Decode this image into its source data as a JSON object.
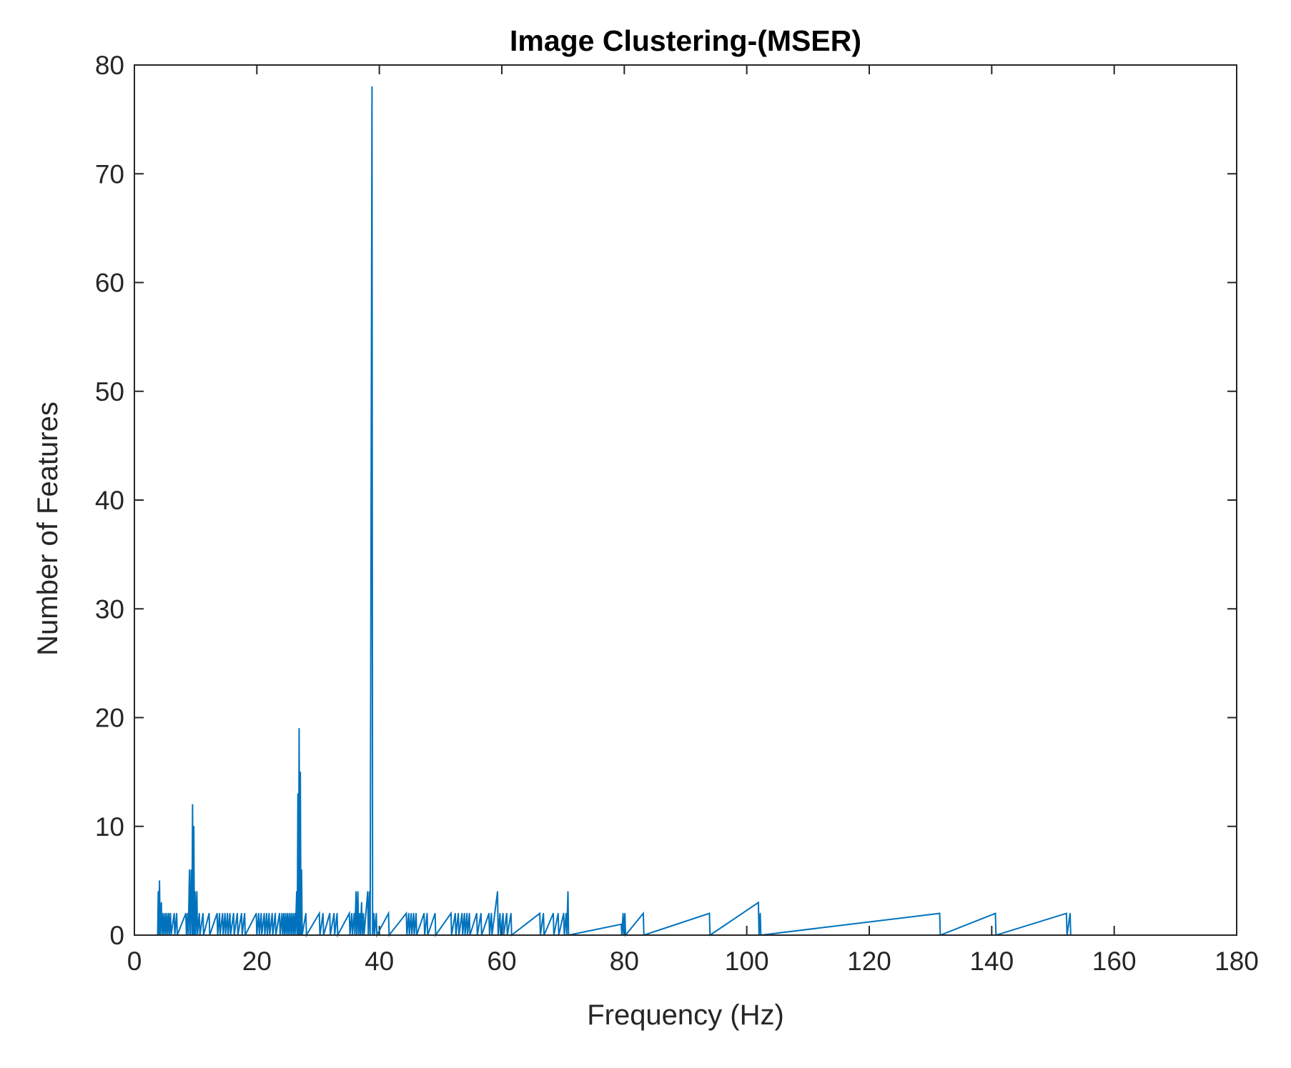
{
  "chart_data": {
    "type": "line",
    "title": "Image Clustering-(MSER)",
    "xlabel": "Frequency (Hz)",
    "ylabel": "Number of Features",
    "xlim": [
      0,
      180
    ],
    "ylim": [
      0,
      80
    ],
    "xticks": [
      0,
      20,
      40,
      60,
      80,
      100,
      120,
      140,
      160,
      180
    ],
    "yticks": [
      0,
      10,
      20,
      30,
      40,
      50,
      60,
      70,
      80
    ],
    "grid": false,
    "series": [
      {
        "color": "#0072BD",
        "points": [
          [
            3.8,
            0
          ],
          [
            3.9,
            4
          ],
          [
            4.0,
            0
          ],
          [
            4.1,
            5
          ],
          [
            4.2,
            0
          ],
          [
            4.4,
            3
          ],
          [
            4.5,
            0
          ],
          [
            4.7,
            2
          ],
          [
            4.8,
            0
          ],
          [
            5.0,
            2
          ],
          [
            5.1,
            0
          ],
          [
            5.3,
            2
          ],
          [
            5.4,
            0
          ],
          [
            5.6,
            2
          ],
          [
            5.7,
            0
          ],
          [
            5.9,
            2
          ],
          [
            6.0,
            0
          ],
          [
            6.5,
            2
          ],
          [
            6.6,
            0
          ],
          [
            6.9,
            2
          ],
          [
            7.0,
            0
          ],
          [
            8.4,
            2
          ],
          [
            8.5,
            0
          ],
          [
            8.7,
            2
          ],
          [
            8.8,
            0
          ],
          [
            9.0,
            6
          ],
          [
            9.1,
            0
          ],
          [
            9.3,
            6
          ],
          [
            9.4,
            0
          ],
          [
            9.5,
            12
          ],
          [
            9.6,
            0
          ],
          [
            9.7,
            10
          ],
          [
            9.8,
            0
          ],
          [
            9.9,
            4
          ],
          [
            10.0,
            0
          ],
          [
            10.2,
            4
          ],
          [
            10.3,
            0
          ],
          [
            10.6,
            2
          ],
          [
            10.7,
            0
          ],
          [
            11.2,
            2
          ],
          [
            11.3,
            0
          ],
          [
            12.2,
            2
          ],
          [
            12.3,
            0
          ],
          [
            13.5,
            2
          ],
          [
            13.6,
            0
          ],
          [
            13.9,
            2
          ],
          [
            14.0,
            0
          ],
          [
            14.4,
            2
          ],
          [
            14.5,
            0
          ],
          [
            14.8,
            2
          ],
          [
            14.9,
            0
          ],
          [
            15.2,
            2
          ],
          [
            15.3,
            0
          ],
          [
            15.6,
            2
          ],
          [
            15.7,
            0
          ],
          [
            16.2,
            2
          ],
          [
            16.3,
            0
          ],
          [
            16.8,
            2
          ],
          [
            16.9,
            0
          ],
          [
            17.5,
            2
          ],
          [
            17.6,
            0
          ],
          [
            18.0,
            2
          ],
          [
            18.1,
            0
          ],
          [
            19.9,
            2
          ],
          [
            20.0,
            0
          ],
          [
            20.3,
            2
          ],
          [
            20.4,
            0
          ],
          [
            20.7,
            2
          ],
          [
            20.8,
            0
          ],
          [
            21.2,
            2
          ],
          [
            21.3,
            0
          ],
          [
            21.6,
            2
          ],
          [
            21.7,
            0
          ],
          [
            22.0,
            2
          ],
          [
            22.1,
            0
          ],
          [
            22.5,
            2
          ],
          [
            22.6,
            0
          ],
          [
            23.0,
            2
          ],
          [
            23.1,
            0
          ],
          [
            23.7,
            2
          ],
          [
            23.8,
            0
          ],
          [
            24.1,
            2
          ],
          [
            24.2,
            0
          ],
          [
            24.4,
            2
          ],
          [
            24.5,
            0
          ],
          [
            24.7,
            2
          ],
          [
            24.8,
            0
          ],
          [
            25.0,
            2
          ],
          [
            25.1,
            0
          ],
          [
            25.3,
            2
          ],
          [
            25.4,
            0
          ],
          [
            25.6,
            2
          ],
          [
            25.7,
            0
          ],
          [
            25.9,
            2
          ],
          [
            26.0,
            0
          ],
          [
            26.2,
            2
          ],
          [
            26.3,
            0
          ],
          [
            26.5,
            4
          ],
          [
            26.6,
            0
          ],
          [
            26.7,
            13
          ],
          [
            26.8,
            0
          ],
          [
            26.9,
            19
          ],
          [
            27.0,
            0
          ],
          [
            27.1,
            15
          ],
          [
            27.2,
            0
          ],
          [
            27.3,
            6
          ],
          [
            27.4,
            0
          ],
          [
            28.0,
            2
          ],
          [
            28.1,
            0
          ],
          [
            30.2,
            2
          ],
          [
            30.3,
            0
          ],
          [
            30.8,
            2
          ],
          [
            30.9,
            0
          ],
          [
            31.9,
            2
          ],
          [
            32.0,
            0
          ],
          [
            32.6,
            2
          ],
          [
            32.7,
            0
          ],
          [
            33.1,
            2
          ],
          [
            33.2,
            0
          ],
          [
            35.1,
            2
          ],
          [
            35.2,
            0
          ],
          [
            35.5,
            2
          ],
          [
            35.6,
            0
          ],
          [
            35.9,
            2
          ],
          [
            36.0,
            0
          ],
          [
            36.2,
            4
          ],
          [
            36.3,
            0
          ],
          [
            36.5,
            4
          ],
          [
            36.6,
            0
          ],
          [
            36.8,
            2
          ],
          [
            36.9,
            0
          ],
          [
            37.1,
            3
          ],
          [
            37.2,
            0
          ],
          [
            37.4,
            2
          ],
          [
            37.5,
            0
          ],
          [
            38.1,
            4
          ],
          [
            38.2,
            0
          ],
          [
            38.4,
            4
          ],
          [
            38.5,
            0
          ],
          [
            38.8,
            78
          ],
          [
            38.9,
            0
          ],
          [
            39.1,
            2
          ],
          [
            39.2,
            0
          ],
          [
            39.5,
            2
          ],
          [
            39.6,
            0
          ],
          [
            41.5,
            2
          ],
          [
            41.6,
            0
          ],
          [
            44.4,
            2
          ],
          [
            44.5,
            0
          ],
          [
            44.8,
            2
          ],
          [
            44.9,
            0
          ],
          [
            45.2,
            2
          ],
          [
            45.3,
            0
          ],
          [
            45.6,
            2
          ],
          [
            45.7,
            0
          ],
          [
            46.0,
            2
          ],
          [
            46.1,
            0
          ],
          [
            47.3,
            2
          ],
          [
            47.4,
            0
          ],
          [
            47.8,
            2
          ],
          [
            47.9,
            0
          ],
          [
            49.1,
            2
          ],
          [
            49.2,
            0
          ],
          [
            51.7,
            2
          ],
          [
            51.8,
            0
          ],
          [
            52.4,
            2
          ],
          [
            52.5,
            0
          ],
          [
            52.9,
            2
          ],
          [
            53.0,
            0
          ],
          [
            53.5,
            2
          ],
          [
            53.6,
            0
          ],
          [
            53.9,
            2
          ],
          [
            54.0,
            0
          ],
          [
            54.3,
            2
          ],
          [
            54.4,
            0
          ],
          [
            54.7,
            2
          ],
          [
            54.8,
            0
          ],
          [
            55.9,
            2
          ],
          [
            56.0,
            0
          ],
          [
            56.6,
            2
          ],
          [
            56.7,
            0
          ],
          [
            57.9,
            2
          ],
          [
            58.0,
            0
          ],
          [
            58.3,
            2
          ],
          [
            58.4,
            0
          ],
          [
            59.3,
            4
          ],
          [
            59.4,
            0
          ],
          [
            59.7,
            2
          ],
          [
            59.8,
            0
          ],
          [
            60.2,
            2
          ],
          [
            60.3,
            0
          ],
          [
            60.8,
            2
          ],
          [
            60.9,
            0
          ],
          [
            61.5,
            2
          ],
          [
            61.6,
            0
          ],
          [
            66.2,
            2
          ],
          [
            66.3,
            0
          ],
          [
            66.8,
            2
          ],
          [
            66.9,
            0
          ],
          [
            68.4,
            2
          ],
          [
            68.5,
            0
          ],
          [
            69.2,
            2
          ],
          [
            69.3,
            0
          ],
          [
            70.1,
            2
          ],
          [
            70.2,
            0
          ],
          [
            70.5,
            2
          ],
          [
            70.6,
            0
          ],
          [
            70.8,
            4
          ],
          [
            70.9,
            0
          ],
          [
            79.5,
            1
          ],
          [
            79.6,
            0
          ],
          [
            79.8,
            2
          ],
          [
            79.9,
            0
          ],
          [
            80.1,
            2
          ],
          [
            80.2,
            0
          ],
          [
            83.1,
            2
          ],
          [
            83.2,
            0
          ],
          [
            93.9,
            2
          ],
          [
            94.0,
            0
          ],
          [
            101.9,
            3
          ],
          [
            102.0,
            0
          ],
          [
            102.2,
            2
          ],
          [
            102.3,
            0
          ],
          [
            131.5,
            2
          ],
          [
            131.6,
            0
          ],
          [
            140.6,
            2
          ],
          [
            140.7,
            0
          ],
          [
            152.2,
            2
          ],
          [
            152.3,
            0
          ],
          [
            152.8,
            2
          ],
          [
            152.9,
            0
          ],
          [
            180,
            0
          ]
        ]
      }
    ]
  }
}
